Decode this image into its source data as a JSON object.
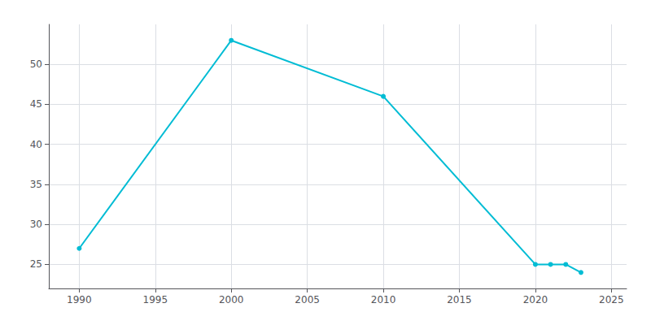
{
  "chart_data": {
    "type": "line",
    "x": [
      1990,
      2000,
      2010,
      2020,
      2021,
      2022,
      2023
    ],
    "values": [
      27,
      53,
      46,
      25,
      25,
      25,
      24
    ],
    "color": "#00BCD4",
    "marker": "circle",
    "xlim": [
      1988,
      2026
    ],
    "xticks": [
      1990,
      1995,
      2000,
      2005,
      2010,
      2015,
      2020,
      2025
    ],
    "ylim": [
      22,
      55
    ],
    "yticks": [
      25,
      30,
      35,
      40,
      45,
      50
    ],
    "grid": true
  }
}
